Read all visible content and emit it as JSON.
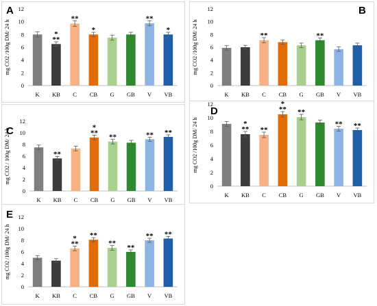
{
  "colors": {
    "K": "#7f7f7f",
    "KB": "#3b3b3b",
    "C": "#f8b183",
    "CB": "#e36c0a",
    "G": "#a9d18e",
    "GB": "#2f8a2f",
    "V": "#8eb4e3",
    "VB": "#1f5ea8"
  },
  "chart_data": [
    {
      "type": "bar",
      "label": "A",
      "ylabel": "mg CO2 /100g DM/ 24 h",
      "ylim": [
        0,
        12
      ],
      "yticks": [
        0,
        2,
        4,
        6,
        8,
        10,
        12
      ],
      "categories": [
        "K",
        "KB",
        "C",
        "CB",
        "G",
        "GB",
        "V",
        "VB"
      ],
      "values": [
        8.0,
        6.5,
        9.7,
        8.0,
        7.5,
        8.0,
        9.75,
        8.0
      ],
      "errors": [
        0.4,
        0.35,
        0.45,
        0.35,
        0.4,
        0.35,
        0.4,
        0.35
      ],
      "marks": [
        "",
        "*\n**",
        "**",
        "*",
        "",
        "",
        "**",
        "*"
      ]
    },
    {
      "type": "bar",
      "label": "B",
      "ylabel": "mg CO2 /100g DM/ 24 h",
      "ylim": [
        0,
        12
      ],
      "yticks": [
        0,
        2,
        4,
        6,
        8,
        10,
        12
      ],
      "categories": [
        "K",
        "KB",
        "C",
        "CB",
        "G",
        "GB",
        "V",
        "VB"
      ],
      "values": [
        5.9,
        6.0,
        7.1,
        6.8,
        6.3,
        7.1,
        5.7,
        6.3
      ],
      "errors": [
        0.35,
        0.3,
        0.4,
        0.35,
        0.35,
        0.35,
        0.35,
        0.35
      ],
      "marks": [
        "",
        "",
        "**",
        "",
        "",
        "**",
        "",
        ""
      ]
    },
    {
      "type": "bar",
      "label": "C",
      "ylabel": "mg CO2 / 100g DM/ 24 h",
      "ylim": [
        0,
        12
      ],
      "yticks": [
        0,
        2,
        4,
        6,
        8,
        10,
        12
      ],
      "categories": [
        "K",
        "KB",
        "C",
        "CB",
        "G",
        "GB",
        "V",
        "VB"
      ],
      "values": [
        7.5,
        5.6,
        7.3,
        9.2,
        8.5,
        8.3,
        8.9,
        9.3
      ],
      "errors": [
        0.4,
        0.35,
        0.4,
        0.4,
        0.4,
        0.4,
        0.35,
        0.35
      ],
      "marks": [
        "",
        "**",
        "",
        "*\n**",
        "**",
        "",
        "**",
        "**"
      ]
    },
    {
      "type": "bar",
      "label": "D",
      "ylabel": "mg CO2 /100g DM/ 24 h",
      "ylim": [
        0,
        12
      ],
      "yticks": [
        0,
        2,
        4,
        6,
        8,
        10,
        12
      ],
      "categories": [
        "K",
        "KB",
        "C",
        "CB",
        "G",
        "GB",
        "V",
        "VB"
      ],
      "values": [
        9.1,
        7.6,
        7.5,
        10.5,
        10.1,
        9.3,
        8.4,
        8.2
      ],
      "errors": [
        0.35,
        0.4,
        0.4,
        0.4,
        0.4,
        0.35,
        0.35,
        0.3
      ],
      "marks": [
        "",
        "*\n**",
        "**",
        "*\n**",
        "**",
        "",
        "**",
        "**"
      ]
    },
    {
      "type": "bar",
      "label": "E",
      "ylabel": "mg CO2 /100g DM/ 24 h",
      "ylim": [
        0,
        12
      ],
      "yticks": [
        0,
        2,
        4,
        6,
        8,
        10,
        12
      ],
      "categories": [
        "K",
        "KB",
        "C",
        "CB",
        "G",
        "GB",
        "V",
        "VB"
      ],
      "values": [
        5.0,
        4.5,
        6.6,
        8.1,
        6.7,
        6.0,
        8.0,
        8.3
      ],
      "errors": [
        0.35,
        0.35,
        0.4,
        0.35,
        0.4,
        0.35,
        0.35,
        0.35
      ],
      "marks": [
        "",
        "",
        "*\n**",
        "**",
        "**",
        "**",
        "**",
        "**"
      ]
    }
  ]
}
